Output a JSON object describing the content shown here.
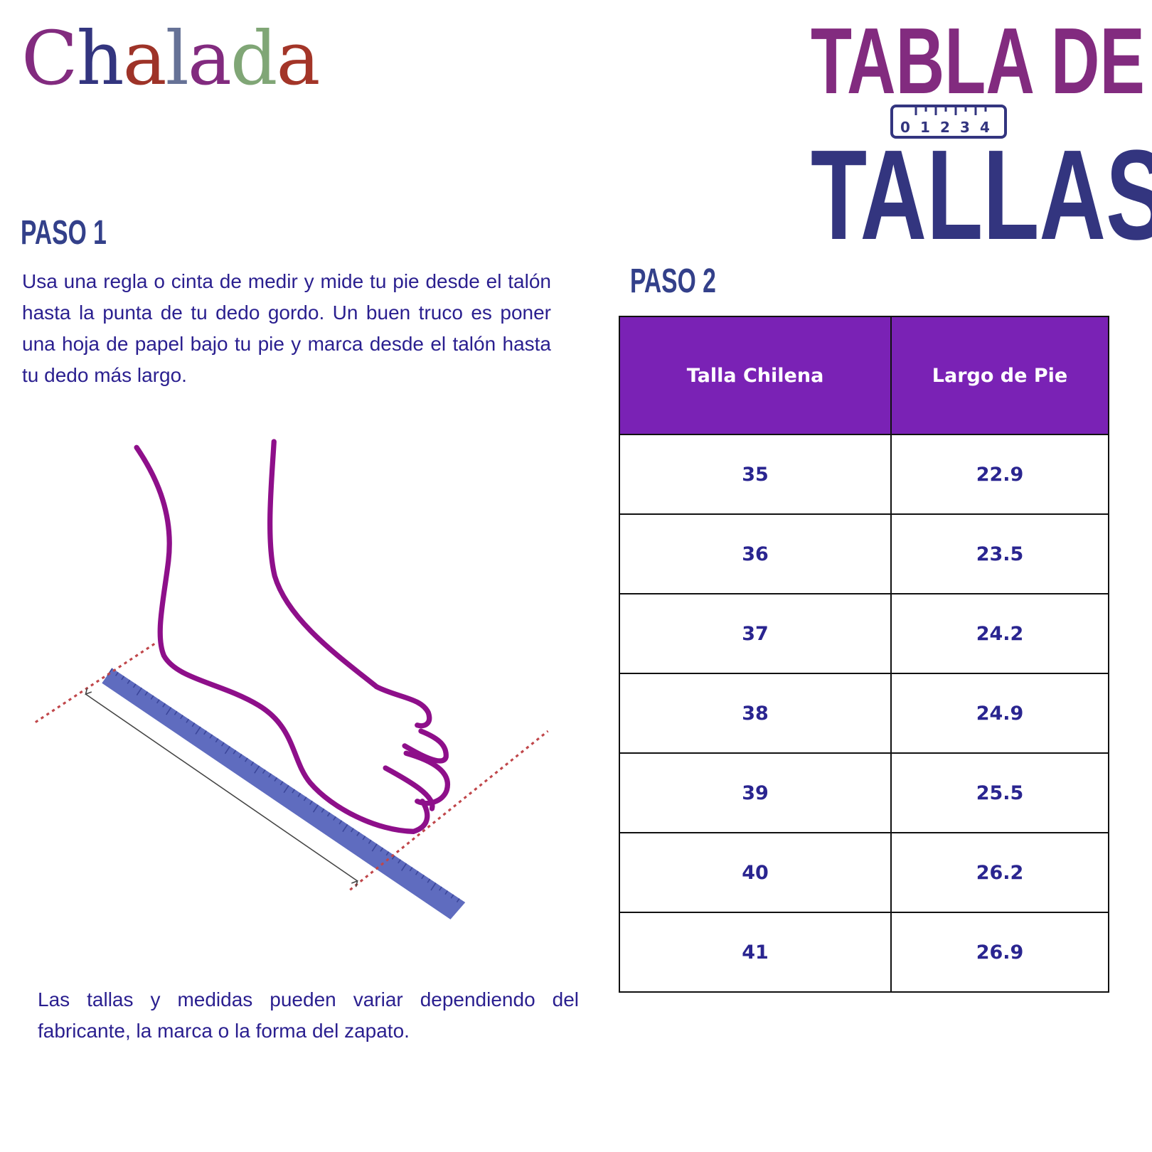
{
  "logo": {
    "text": "Chalada",
    "letters": [
      "C",
      "h",
      "a",
      "l",
      "a",
      "d",
      "a"
    ],
    "colors": [
      "#822b7f",
      "#33357f",
      "#9e3328",
      "#667296",
      "#822b7f",
      "#80a676",
      "#a33528"
    ]
  },
  "title": {
    "line1": "TABLA DE",
    "line2": "TALLAS",
    "ruler_numbers": [
      "0",
      "1",
      "2",
      "3",
      "4"
    ],
    "colors": {
      "line1": "#822b7f",
      "line2": "#33357f"
    }
  },
  "step1": {
    "heading": "PASO 1",
    "text": "Usa una regla o cinta de medir y mide tu pie desde el talón hasta la punta de tu dedo gordo. Un buen truco es poner una hoja de papel bajo tu pie y marca desde el talón hasta tu dedo más largo."
  },
  "step2": {
    "heading": "PASO 2"
  },
  "table": {
    "headers": [
      "Talla Chilena",
      "Largo de Pie"
    ],
    "rows": [
      [
        "35",
        "22.9"
      ],
      [
        "36",
        "23.5"
      ],
      [
        "37",
        "24.2"
      ],
      [
        "38",
        "24.9"
      ],
      [
        "39",
        "25.5"
      ],
      [
        "40",
        "26.2"
      ],
      [
        "41",
        "26.9"
      ]
    ],
    "header_color": "#7a22b5"
  },
  "note": "Las tallas y medidas pueden variar dependiendo del fabricante, la marca o la forma del zapato."
}
